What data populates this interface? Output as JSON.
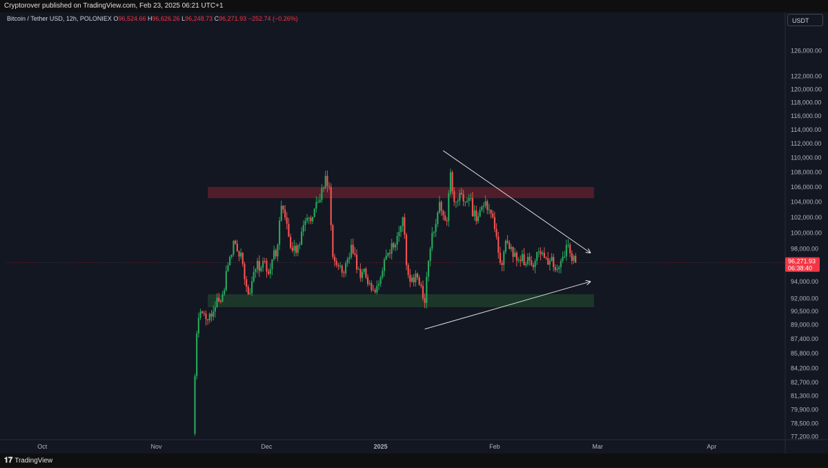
{
  "header": {
    "published": "Cryptorover published on TradingView.com, Feb 23, 2025 06:21 UTC+1"
  },
  "legend": {
    "symbol": "Bitcoin / Tether USD, 12h, POLONIEX",
    "o_label": "O",
    "o_value": "96,524.66",
    "h_label": "H",
    "h_value": "96,626.26",
    "l_label": "L",
    "l_value": "96,248.73",
    "c_label": "C",
    "c_value": "96,271.93",
    "change": "−252.74 (−0.26%)"
  },
  "currency": "USDT",
  "price_tag": {
    "price": "96,271.93",
    "countdown": "06:38:40",
    "color": "#f23645"
  },
  "footer": {
    "brand": "TradingView",
    "logo_icon": "tradingview-logo-icon"
  },
  "colors": {
    "background": "#131722",
    "up": "#26a65b",
    "down": "#ef5350",
    "resistance_zone": "#5c1f2b",
    "support_zone": "#1e3d2a"
  },
  "chart_data": {
    "type": "candlestick",
    "symbol": "BTCUSDT",
    "interval": "12h",
    "y_axis": {
      "scale": "log",
      "ticks": [
        "126,000.00",
        "122,000.00",
        "120,000.00",
        "118,000.00",
        "116,000.00",
        "114,000.00",
        "112,000.00",
        "110,000.00",
        "108,000.00",
        "106,000.00",
        "104,000.00",
        "102,000.00",
        "100,000.00",
        "98,000.00",
        "94,000.00",
        "92,000.00",
        "90,500.00",
        "89,000.00",
        "87,400.00",
        "85,800.00",
        "84,200.00",
        "82,700.00",
        "81,300.00",
        "79,900.00",
        "78,500.00",
        "77,200.00"
      ],
      "tick_values": [
        126000,
        122000,
        120000,
        118000,
        116000,
        114000,
        112000,
        110000,
        108000,
        106000,
        104000,
        102000,
        100000,
        98000,
        94000,
        92000,
        90500,
        89000,
        87400,
        85800,
        84200,
        82700,
        81300,
        79900,
        78500,
        77200
      ]
    },
    "x_axis": {
      "labels": [
        {
          "text": "Oct",
          "date": "2024-10-01",
          "bold": false
        },
        {
          "text": "Nov",
          "date": "2024-11-01",
          "bold": false
        },
        {
          "text": "Dec",
          "date": "2024-12-01",
          "bold": false
        },
        {
          "text": "2025",
          "date": "2025-01-01",
          "bold": true
        },
        {
          "text": "Feb",
          "date": "2025-02-01",
          "bold": false
        },
        {
          "text": "Mar",
          "date": "2025-03-01",
          "bold": false
        },
        {
          "text": "Apr",
          "date": "2025-04-01",
          "bold": false
        }
      ]
    },
    "series": [
      {
        "date": "2024-11-11",
        "close": 77500
      },
      {
        "date": "2024-11-12",
        "close": 88000
      },
      {
        "date": "2024-11-13",
        "close": 90500
      },
      {
        "date": "2024-11-15",
        "close": 89500
      },
      {
        "date": "2024-11-17",
        "close": 91000
      },
      {
        "date": "2024-11-19",
        "close": 92500
      },
      {
        "date": "2024-11-21",
        "close": 97000
      },
      {
        "date": "2024-11-22",
        "close": 99000
      },
      {
        "date": "2024-11-24",
        "close": 97500
      },
      {
        "date": "2024-11-26",
        "close": 92500
      },
      {
        "date": "2024-11-28",
        "close": 95500
      },
      {
        "date": "2024-11-30",
        "close": 96500
      },
      {
        "date": "2024-12-02",
        "close": 95500
      },
      {
        "date": "2024-12-04",
        "close": 98500
      },
      {
        "date": "2024-12-05",
        "close": 103500
      },
      {
        "date": "2024-12-07",
        "close": 99500
      },
      {
        "date": "2024-12-09",
        "close": 97500
      },
      {
        "date": "2024-12-11",
        "close": 101000
      },
      {
        "date": "2024-12-13",
        "close": 101500
      },
      {
        "date": "2024-12-15",
        "close": 104000
      },
      {
        "date": "2024-12-17",
        "close": 107500
      },
      {
        "date": "2024-12-18",
        "close": 106000
      },
      {
        "date": "2024-12-19",
        "close": 97000
      },
      {
        "date": "2024-12-20",
        "close": 96000
      },
      {
        "date": "2024-12-22",
        "close": 95000
      },
      {
        "date": "2024-12-24",
        "close": 98500
      },
      {
        "date": "2024-12-26",
        "close": 95500
      },
      {
        "date": "2024-12-28",
        "close": 94500
      },
      {
        "date": "2024-12-30",
        "close": 93000
      },
      {
        "date": "2025-01-01",
        "close": 94500
      },
      {
        "date": "2025-01-03",
        "close": 97500
      },
      {
        "date": "2025-01-05",
        "close": 98500
      },
      {
        "date": "2025-01-07",
        "close": 102000
      },
      {
        "date": "2025-01-08",
        "close": 96000
      },
      {
        "date": "2025-01-09",
        "close": 94000
      },
      {
        "date": "2025-01-11",
        "close": 94500
      },
      {
        "date": "2025-01-13",
        "close": 91500
      },
      {
        "date": "2025-01-14",
        "close": 96500
      },
      {
        "date": "2025-01-15",
        "close": 100000
      },
      {
        "date": "2025-01-17",
        "close": 104000
      },
      {
        "date": "2025-01-19",
        "close": 101500
      },
      {
        "date": "2025-01-20",
        "close": 108000
      },
      {
        "date": "2025-01-21",
        "close": 104000
      },
      {
        "date": "2025-01-23",
        "close": 105000
      },
      {
        "date": "2025-01-25",
        "close": 104500
      },
      {
        "date": "2025-01-27",
        "close": 101500
      },
      {
        "date": "2025-01-29",
        "close": 103500
      },
      {
        "date": "2025-01-31",
        "close": 102500
      },
      {
        "date": "2025-02-01",
        "close": 100500
      },
      {
        "date": "2025-02-02",
        "close": 97500
      },
      {
        "date": "2025-02-03",
        "close": 96000
      },
      {
        "date": "2025-02-04",
        "close": 99000
      },
      {
        "date": "2025-02-06",
        "close": 97000
      },
      {
        "date": "2025-02-08",
        "close": 96500
      },
      {
        "date": "2025-02-10",
        "close": 97000
      },
      {
        "date": "2025-02-12",
        "close": 96500
      },
      {
        "date": "2025-02-14",
        "close": 97500
      },
      {
        "date": "2025-02-16",
        "close": 96500
      },
      {
        "date": "2025-02-18",
        "close": 95500
      },
      {
        "date": "2025-02-19",
        "close": 96500
      },
      {
        "date": "2025-02-21",
        "close": 98500
      },
      {
        "date": "2025-02-22",
        "close": 96500
      },
      {
        "date": "2025-02-23",
        "close": 96272
      }
    ],
    "zones": [
      {
        "name": "resistance",
        "from_date": "2024-11-15",
        "to_date": "2025-02-28",
        "low": 104500,
        "high": 106000
      },
      {
        "name": "support",
        "from_date": "2024-11-15",
        "to_date": "2025-02-28",
        "low": 91000,
        "high": 92500
      }
    ],
    "trendlines": [
      {
        "name": "descending",
        "from": {
          "date": "2025-01-18",
          "price": 111000
        },
        "to": {
          "date": "2025-02-27",
          "price": 97500
        }
      },
      {
        "name": "ascending",
        "from": {
          "date": "2025-01-13",
          "price": 88500
        },
        "to": {
          "date": "2025-02-27",
          "price": 94000
        }
      }
    ]
  }
}
